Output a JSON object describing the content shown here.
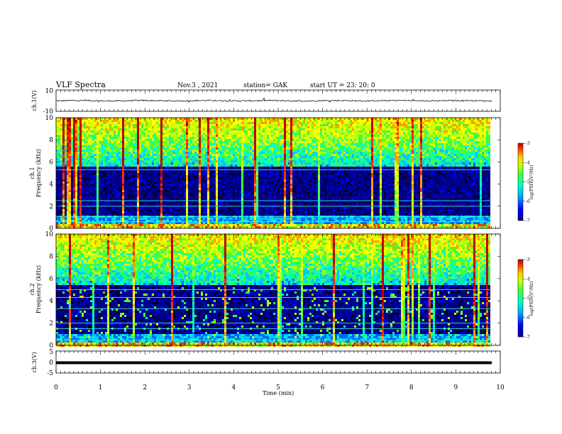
{
  "chart_data": {
    "type": "heatmap",
    "header": {
      "title": "VLF Spectra",
      "date": "Nov.3 , 2021",
      "station": "station= GAK",
      "start": "start UT = 23: 20: 0"
    },
    "xlabel": "Time (min)",
    "xlim": [
      0,
      10
    ],
    "xticks": [
      "0",
      "1",
      "2",
      "3",
      "4",
      "5",
      "6",
      "7",
      "8",
      "9",
      "10"
    ],
    "panels": [
      {
        "kind": "waveform",
        "ylabel": "ch.1(V)",
        "ylim": [
          -10,
          10
        ],
        "yticks": [
          "10",
          "-10"
        ],
        "trace_amplitude": 0.5
      },
      {
        "kind": "spectrogram",
        "ylabel_line1": "ch.1",
        "ylabel_line2": "Frequency (kHz)",
        "ylim": [
          0,
          10
        ],
        "yticks": [
          "10",
          "8",
          "6",
          "4",
          "2",
          "0"
        ],
        "colorbar": {
          "label": "log(PSD)(V²/Hz)",
          "ticks": [
            "-3",
            "-4",
            "-5",
            "-6",
            "-7"
          ],
          "range": [
            -7,
            -3
          ]
        }
      },
      {
        "kind": "spectrogram",
        "ylabel_line1": "ch.2",
        "ylabel_line2": "Frequency (kHz)",
        "ylim": [
          0,
          10
        ],
        "yticks": [
          "10",
          "8",
          "6",
          "4",
          "2",
          "0"
        ],
        "colorbar": {
          "label": "log(PSD)(V²/Hz)",
          "ticks": [
            "-3",
            "-4",
            "-5",
            "-6",
            "-7"
          ],
          "range": [
            -7,
            -3
          ]
        }
      },
      {
        "kind": "waveform",
        "ylabel": "ch.3(V)",
        "ylim": [
          -5,
          5
        ],
        "yticks": [
          "5",
          "0",
          "-5"
        ],
        "trace_level": 0
      }
    ],
    "colormap": [
      "#000030",
      "#00008f",
      "#0000ff",
      "#0060ff",
      "#00c8ff",
      "#00ffc0",
      "#40ff40",
      "#c0ff00",
      "#ffff00",
      "#ffa000",
      "#ff3000",
      "#c00000"
    ]
  }
}
